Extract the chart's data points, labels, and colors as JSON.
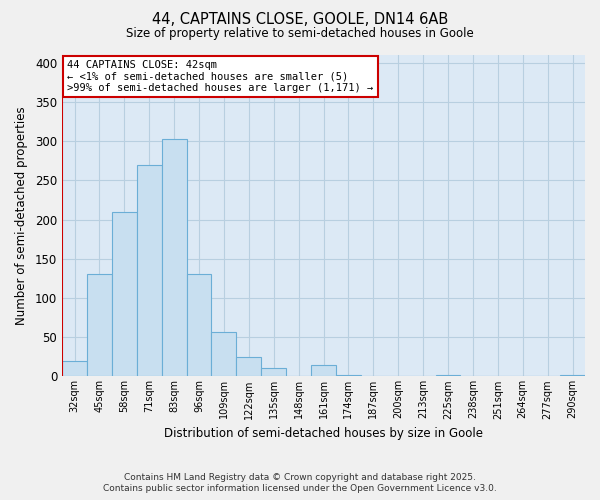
{
  "title": "44, CAPTAINS CLOSE, GOOLE, DN14 6AB",
  "subtitle": "Size of property relative to semi-detached houses in Goole",
  "xlabel": "Distribution of semi-detached houses by size in Goole",
  "ylabel": "Number of semi-detached properties",
  "bin_labels": [
    "32sqm",
    "45sqm",
    "58sqm",
    "71sqm",
    "83sqm",
    "96sqm",
    "109sqm",
    "122sqm",
    "135sqm",
    "148sqm",
    "161sqm",
    "174sqm",
    "187sqm",
    "200sqm",
    "213sqm",
    "225sqm",
    "238sqm",
    "251sqm",
    "264sqm",
    "277sqm",
    "290sqm"
  ],
  "bar_heights": [
    20,
    130,
    210,
    270,
    303,
    130,
    57,
    25,
    11,
    0,
    14,
    2,
    0,
    0,
    0,
    2,
    0,
    0,
    0,
    0,
    2
  ],
  "bar_color": "#c8dff0",
  "bar_edge_color": "#6baed6",
  "highlight_color": "#cc0000",
  "annotation_title": "44 CAPTAINS CLOSE: 42sqm",
  "annotation_line1": "← <1% of semi-detached houses are smaller (5)",
  "annotation_line2": ">99% of semi-detached houses are larger (1,171) →",
  "ylim": [
    0,
    410
  ],
  "yticks": [
    0,
    50,
    100,
    150,
    200,
    250,
    300,
    350,
    400
  ],
  "footnote1": "Contains HM Land Registry data © Crown copyright and database right 2025.",
  "footnote2": "Contains public sector information licensed under the Open Government Licence v3.0.",
  "bg_color": "#f0f0f0",
  "plot_bg_color": "#dce9f5",
  "grid_color": "#b8cfe0"
}
